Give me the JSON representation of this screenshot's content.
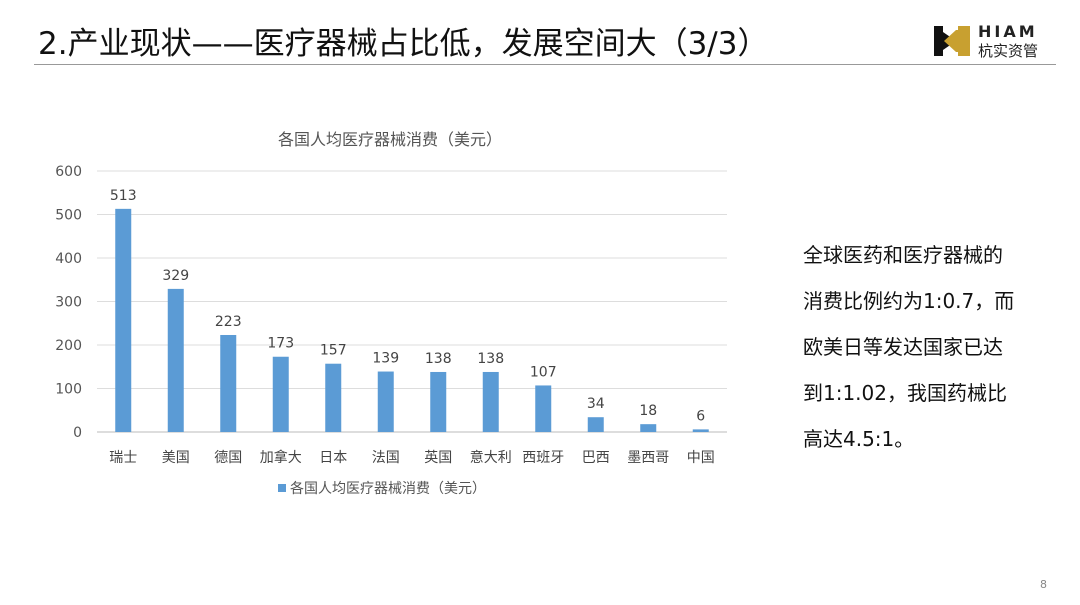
{
  "header": {
    "title": "2.产业现状——医疗器械占比低，发展空间大（3/3）",
    "logo_en": "HIAM",
    "logo_cn": "杭实资管"
  },
  "side_text": [
    "全球医药和医疗器械的",
    "消费比例约为1:0.7，而",
    "欧美日等发达国家已达",
    "到1:1.02，我国药械比",
    "高达4.5:1。"
  ],
  "page_number": "8",
  "chart_data": {
    "type": "bar",
    "title": "各国人均医疗器械消费（美元）",
    "categories": [
      "瑞士",
      "美国",
      "德国",
      "加拿大",
      "日本",
      "法国",
      "英国",
      "意大利",
      "西班牙",
      "巴西",
      "墨西哥",
      "中国"
    ],
    "series": [
      {
        "name": "各国人均医疗器械消费（美元）",
        "values": [
          513,
          329,
          223,
          173,
          157,
          139,
          138,
          138,
          107,
          34,
          18,
          6
        ],
        "color": "#5b9bd5"
      }
    ],
    "ylim": [
      0,
      600
    ],
    "yticks": [
      0,
      100,
      200,
      300,
      400,
      500,
      600
    ],
    "grid": true,
    "legend": "bottom",
    "data_labels": true
  }
}
